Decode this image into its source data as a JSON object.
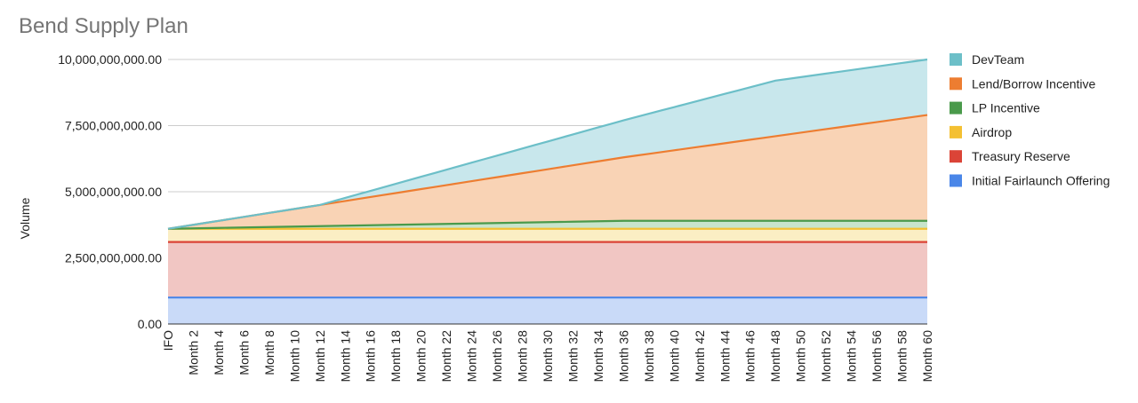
{
  "chart_data": {
    "type": "area",
    "stacked": true,
    "title": "Bend Supply Plan",
    "xlabel": "",
    "ylabel": "Volume",
    "ylim": [
      0,
      10000000000
    ],
    "yticks": [
      0,
      2500000000,
      5000000000,
      7500000000,
      10000000000
    ],
    "ytick_labels": [
      "0.00",
      "2,500,000,000.00",
      "5,000,000,000.00",
      "7,500,000,000.00",
      "10,000,000,000.00"
    ],
    "grid": true,
    "legend_position": "right",
    "x": [
      "IFO",
      "Month 1",
      "Month 2",
      "Month 3",
      "Month 4",
      "Month 5",
      "Month 6",
      "Month 7",
      "Month 8",
      "Month 9",
      "Month 10",
      "Month 11",
      "Month 12",
      "Month 13",
      "Month 14",
      "Month 15",
      "Month 16",
      "Month 17",
      "Month 18",
      "Month 19",
      "Month 20",
      "Month 21",
      "Month 22",
      "Month 23",
      "Month 24",
      "Month 25",
      "Month 26",
      "Month 27",
      "Month 28",
      "Month 29",
      "Month 30",
      "Month 31",
      "Month 32",
      "Month 33",
      "Month 34",
      "Month 35",
      "Month 36",
      "Month 37",
      "Month 38",
      "Month 39",
      "Month 40",
      "Month 41",
      "Month 42",
      "Month 43",
      "Month 44",
      "Month 45",
      "Month 46",
      "Month 47",
      "Month 48",
      "Month 49",
      "Month 50",
      "Month 51",
      "Month 52",
      "Month 53",
      "Month 54",
      "Month 55",
      "Month 56",
      "Month 57",
      "Month 58",
      "Month 59",
      "Month 60"
    ],
    "x_tick_labels": [
      "IFO",
      "Month 2",
      "Month 4",
      "Month 6",
      "Month 8",
      "Month 10",
      "Month 12",
      "Month 14",
      "Month 16",
      "Month 18",
      "Month 20",
      "Month 22",
      "Month 24",
      "Month 26",
      "Month 28",
      "Month 30",
      "Month 32",
      "Month 34",
      "Month 36",
      "Month 38",
      "Month 40",
      "Month 42",
      "Month 44",
      "Month 46",
      "Month 48",
      "Month 50",
      "Month 52",
      "Month 54",
      "Month 56",
      "Month 58",
      "Month 60"
    ],
    "series": [
      {
        "name": "Initial Fairlaunch Offering",
        "color": "#4a86e8",
        "fill": "#c9daf8",
        "anchors": [
          [
            0,
            1000000000
          ],
          [
            60,
            1000000000
          ]
        ]
      },
      {
        "name": "Treasury Reserve",
        "color": "#db4437",
        "fill": "#f1c6c3",
        "anchors": [
          [
            0,
            2100000000
          ],
          [
            60,
            2100000000
          ]
        ]
      },
      {
        "name": "Airdrop",
        "color": "#f4c032",
        "fill": "#fbeec4",
        "anchors": [
          [
            0,
            500000000
          ],
          [
            60,
            500000000
          ]
        ]
      },
      {
        "name": "LP Incentive",
        "color": "#4a9a4b",
        "fill": "#c8e4cb",
        "anchors": [
          [
            0,
            0
          ],
          [
            36,
            300000000
          ],
          [
            60,
            300000000
          ]
        ]
      },
      {
        "name": "Lend/Borrow Incentive",
        "color": "#ed7d31",
        "fill": "#f9d3b5",
        "anchors": [
          [
            0,
            0
          ],
          [
            12,
            800000000
          ],
          [
            36,
            2400000000
          ],
          [
            60,
            4000000000
          ]
        ]
      },
      {
        "name": "DevTeam",
        "color": "#6cbfc8",
        "fill": "#c8e7ec",
        "anchors": [
          [
            0,
            0
          ],
          [
            12,
            0
          ],
          [
            36,
            1400000000
          ],
          [
            48,
            2100000000
          ],
          [
            60,
            2100000000
          ]
        ]
      }
    ],
    "legend_order": [
      "DevTeam",
      "Lend/Borrow Incentive",
      "LP Incentive",
      "Airdrop",
      "Treasury Reserve",
      "Initial Fairlaunch Offering"
    ]
  }
}
